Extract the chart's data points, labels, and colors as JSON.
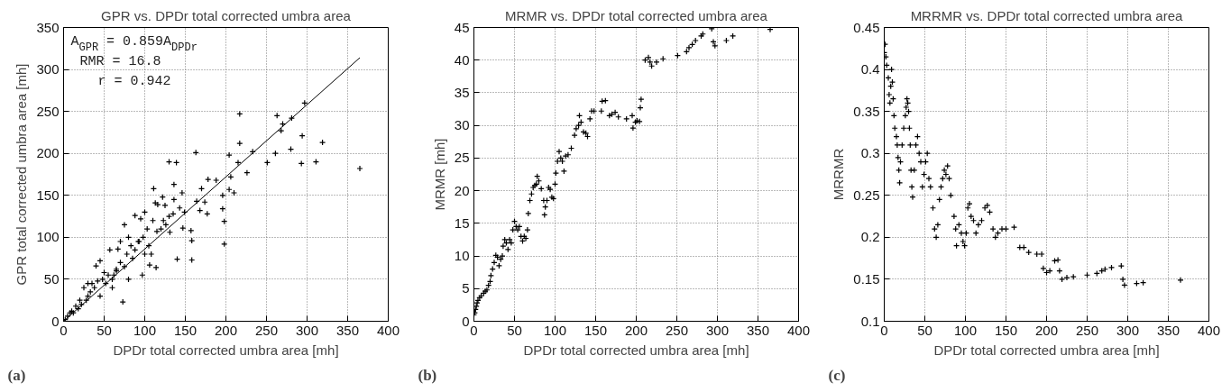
{
  "chart_data": [
    {
      "type": "scatter",
      "title": "GPR vs. DPDr total corrected umbra area",
      "xlabel": "DPDr total corrected umbra area [mh]",
      "ylabel": "GPR total corrected umbra area [mh]",
      "xlim": [
        0,
        400
      ],
      "ylim": [
        0,
        350
      ],
      "xticks": [
        0,
        50,
        100,
        150,
        200,
        250,
        300,
        350,
        400
      ],
      "yticks": [
        0,
        50,
        100,
        150,
        200,
        250,
        300,
        350
      ],
      "grid": true,
      "annotations": [
        "A$_{GPR}$ = 0.859A$_{DPDr}$",
        "RMR = 16.8",
        "r = 0.942",
        "(a)"
      ],
      "series": [
        {
          "color": "#000000",
          "marker": "cross",
          "x": [
            217,
            263,
            297,
            281,
            270,
            268,
            294,
            319,
            217,
            233,
            280,
            261,
            163,
            204,
            251,
            293,
            311,
            130,
            139,
            215,
            226,
            365,
            206,
            178,
            188,
            170,
            204,
            210,
            146,
            111,
            136,
            196,
            164,
            174,
            196,
            168,
            177,
            136,
            122,
            113,
            116,
            123,
            126,
            135,
            143,
            149,
            147,
            131,
            157,
            158,
            198,
            198,
            140,
            158,
            114,
            106,
            97,
            73,
            80,
            60,
            57,
            67,
            85,
            88,
            100,
            95,
            103,
            108,
            115,
            93,
            80,
            40,
            45,
            50,
            35,
            25,
            30,
            20,
            15,
            10,
            5,
            2,
            8,
            12,
            18,
            22,
            28,
            33,
            38,
            42,
            48,
            55,
            52,
            62,
            65,
            70,
            75,
            78,
            83,
            88,
            92,
            98,
            105,
            110,
            60,
            45,
            30,
            70,
            75,
            65,
            100,
            120,
            125,
            130
          ],
          "values": [
            247,
            245,
            260,
            242,
            235,
            227,
            221,
            213,
            212,
            202,
            205,
            200,
            201,
            198,
            189,
            188,
            190,
            190,
            189,
            189,
            177,
            182,
            172,
            169,
            168,
            158,
            157,
            153,
            153,
            158,
            163,
            150,
            143,
            142,
            134,
            132,
            128,
            145,
            148,
            141,
            139,
            120,
            115,
            128,
            135,
            130,
            111,
            106,
            108,
            96,
            119,
            92,
            74,
            73,
            64,
            67,
            55,
            23,
            50,
            50,
            85,
            86,
            75,
            126,
            130,
            122,
            110,
            80,
            107,
            95,
            100,
            66,
            72,
            58,
            45,
            40,
            30,
            25,
            18,
            12,
            6,
            2,
            10,
            10,
            15,
            20,
            25,
            35,
            40,
            48,
            50,
            55,
            45,
            55,
            62,
            70,
            65,
            80,
            90,
            85,
            95,
            100,
            90,
            120,
            40,
            30,
            45,
            95,
            115,
            60,
            80,
            110,
            138,
            125
          ]
        },
        {
          "type": "line",
          "color": "#000000",
          "x": [
            0,
            365
          ],
          "values": [
            0,
            314
          ]
        }
      ]
    },
    {
      "type": "scatter",
      "title": "MRMR vs. DPDr total corrected umbra area",
      "xlabel": "DPDr total corrected umbra area [mh]",
      "ylabel": "MRMR [mh]",
      "xlim": [
        0,
        400
      ],
      "ylim": [
        0,
        45
      ],
      "xticks": [
        0,
        50,
        100,
        150,
        200,
        250,
        300,
        350,
        400
      ],
      "yticks": [
        0,
        5,
        10,
        15,
        20,
        25,
        30,
        35,
        40,
        45
      ],
      "grid": true,
      "marker": "cross",
      "annotations": [
        "(b)"
      ],
      "series": [
        {
          "color": "#000000",
          "x": [
            0,
            1,
            2,
            3,
            4,
            5,
            7,
            9,
            12,
            14,
            16,
            18,
            20,
            21,
            23,
            25,
            27,
            29,
            31,
            33,
            35,
            36,
            38,
            40,
            42,
            44,
            46,
            48,
            50,
            52,
            54,
            56,
            58,
            60,
            62,
            64,
            66,
            67,
            69,
            71,
            73,
            75,
            77,
            78,
            80,
            83,
            86,
            87,
            88,
            90,
            92,
            94,
            96,
            98,
            100,
            101,
            103,
            105,
            107,
            109,
            111,
            113,
            116,
            120,
            124,
            126,
            129,
            130,
            132,
            135,
            138,
            140,
            143,
            145,
            148,
            157,
            158,
            162,
            167,
            170,
            174,
            178,
            188,
            195,
            196,
            199,
            201,
            204,
            205,
            206,
            211,
            215,
            217,
            219,
            225,
            233,
            251,
            262,
            265,
            269,
            273,
            280,
            282,
            293,
            295,
            297,
            311,
            319,
            365
          ],
          "values": [
            1,
            1.3,
            1.8,
            2.3,
            2.8,
            3.2,
            3.6,
            3.9,
            4.3,
            4.6,
            4.8,
            5.5,
            6.1,
            7,
            8,
            9,
            10.1,
            9.8,
            8.5,
            9.5,
            10,
            11.5,
            12.5,
            12,
            11,
            12.5,
            12,
            14,
            15.3,
            14.5,
            14,
            14.5,
            13,
            12.3,
            13,
            12.7,
            14,
            16.5,
            18.5,
            19.5,
            20.5,
            20.8,
            21,
            22.2,
            21.5,
            20.3,
            18.5,
            16.3,
            17.5,
            18.5,
            20.5,
            20.2,
            19,
            18.8,
            21,
            22.7,
            24.5,
            26,
            25,
            24.5,
            23,
            25.3,
            25.5,
            26.5,
            28.5,
            29.5,
            30,
            31.5,
            30.5,
            29,
            28.8,
            28.3,
            31,
            32.2,
            32.2,
            32.2,
            33.7,
            33.8,
            31.5,
            31.7,
            32,
            31.3,
            31,
            31.5,
            29.6,
            30.5,
            30.7,
            30.6,
            32.7,
            34,
            40,
            40.4,
            39.7,
            39.1,
            39.7,
            40.2,
            40.7,
            41.3,
            41.9,
            42.4,
            43,
            43.7,
            44,
            44.8,
            42.8,
            42.2,
            43,
            43.7,
            44.7
          ]
        }
      ]
    },
    {
      "type": "scatter",
      "title": "MRRMR vs. DPDr total corrected umbra area",
      "xlabel": "DPDr total corrected umbra area [mh]",
      "ylabel": "MRRMR",
      "xlim": [
        0,
        400
      ],
      "ylim": [
        0.1,
        0.45
      ],
      "xticks": [
        0,
        50,
        100,
        150,
        200,
        250,
        300,
        350,
        400
      ],
      "yticks": [
        0.1,
        0.15,
        0.2,
        0.25,
        0.3,
        0.35,
        0.4,
        0.45
      ],
      "grid": true,
      "marker": "cross",
      "annotations": [
        "(c)"
      ],
      "series": [
        {
          "color": "#000000",
          "x": [
            0,
            1,
            2,
            3,
            5,
            6,
            7,
            8,
            9,
            10,
            11,
            12,
            13,
            15,
            16,
            17,
            18,
            19,
            20,
            22,
            24,
            26,
            27,
            28,
            29,
            30,
            31,
            32,
            33,
            34,
            35,
            37,
            39,
            41,
            43,
            45,
            47,
            49,
            51,
            53,
            55,
            57,
            60,
            62,
            64,
            66,
            68,
            70,
            72,
            74,
            76,
            78,
            80,
            82,
            86,
            88,
            89,
            92,
            95,
            97,
            99,
            101,
            103,
            105,
            107,
            110,
            113,
            116,
            120,
            124,
            127,
            130,
            134,
            137,
            140,
            145,
            150,
            160,
            167,
            172,
            178,
            188,
            194,
            196,
            200,
            204,
            210,
            214,
            216,
            219,
            225,
            233,
            250,
            262,
            268,
            272,
            280,
            292,
            294,
            296,
            311,
            319,
            365
          ],
          "values": [
            0.42,
            0.43,
            0.415,
            0.405,
            0.39,
            0.37,
            0.36,
            0.38,
            0.4,
            0.385,
            0.365,
            0.345,
            0.33,
            0.32,
            0.31,
            0.295,
            0.28,
            0.265,
            0.29,
            0.31,
            0.33,
            0.345,
            0.355,
            0.365,
            0.36,
            0.35,
            0.33,
            0.31,
            0.28,
            0.26,
            0.248,
            0.28,
            0.31,
            0.32,
            0.3,
            0.29,
            0.26,
            0.275,
            0.29,
            0.3,
            0.27,
            0.26,
            0.235,
            0.21,
            0.2,
            0.215,
            0.245,
            0.26,
            0.27,
            0.28,
            0.275,
            0.285,
            0.27,
            0.25,
            0.225,
            0.21,
            0.19,
            0.215,
            0.205,
            0.195,
            0.19,
            0.205,
            0.235,
            0.24,
            0.225,
            0.22,
            0.205,
            0.215,
            0.22,
            0.235,
            0.238,
            0.23,
            0.21,
            0.2,
            0.205,
            0.21,
            0.21,
            0.212,
            0.188,
            0.188,
            0.182,
            0.18,
            0.18,
            0.163,
            0.158,
            0.16,
            0.172,
            0.173,
            0.16,
            0.15,
            0.152,
            0.153,
            0.155,
            0.157,
            0.16,
            0.162,
            0.164,
            0.166,
            0.15,
            0.143,
            0.145,
            0.146,
            0.149
          ]
        }
      ]
    }
  ]
}
